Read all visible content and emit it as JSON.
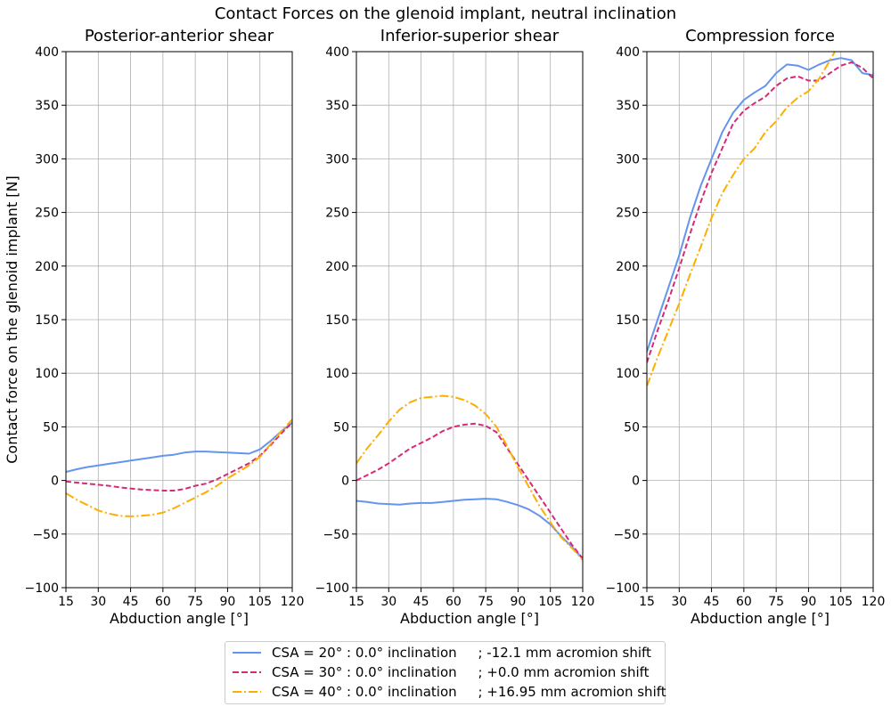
{
  "figure_title": "Contact Forces on the glenoid implant, neutral inclination",
  "colors": {
    "csa20": "#6495ed",
    "csa30": "#d62a76",
    "csa40": "#ffae00",
    "grid": "#b0b0b0"
  },
  "legend": [
    {
      "label": "CSA = 20° : 0.0° inclination     ; -12.1 mm acromion shift",
      "color": "#6495ed",
      "style": "solid"
    },
    {
      "label": "CSA = 30° : 0.0° inclination     ; +0.0 mm acromion shift",
      "color": "#d62a76",
      "style": "dashed"
    },
    {
      "label": "CSA = 40° : 0.0° inclination     ; +16.95 mm acromion shift",
      "color": "#ffae00",
      "style": "dashdot"
    }
  ],
  "chart_data": [
    {
      "type": "line",
      "title": "Posterior-anterior shear",
      "xlabel": "Abduction angle [°]",
      "ylabel": "Contact force on the glenoid implant [N]",
      "xlim": [
        15,
        120
      ],
      "ylim": [
        -100,
        400
      ],
      "xticks": [
        15,
        30,
        45,
        60,
        75,
        90,
        105,
        120
      ],
      "yticks": [
        -100,
        -50,
        0,
        50,
        100,
        150,
        200,
        250,
        300,
        350,
        400
      ],
      "grid": true,
      "series": [
        {
          "name": "CSA = 20° : 0.0° inclination     ; -12.1 mm acromion shift",
          "x": [
            15,
            20,
            25,
            30,
            35,
            40,
            45,
            50,
            55,
            60,
            65,
            70,
            75,
            80,
            85,
            90,
            95,
            100,
            105,
            110,
            115,
            120
          ],
          "y": [
            8,
            10.5,
            12.5,
            14,
            15.5,
            17,
            18.5,
            20,
            21.5,
            23,
            24,
            26,
            27,
            27,
            26.5,
            26,
            25.5,
            25,
            29,
            37,
            46,
            54
          ]
        },
        {
          "name": "CSA = 30° : 0.0° inclination     ; +0.0 mm acromion shift",
          "x": [
            15,
            20,
            25,
            30,
            35,
            40,
            45,
            50,
            55,
            60,
            65,
            70,
            75,
            80,
            85,
            90,
            95,
            100,
            105,
            110,
            115,
            120
          ],
          "y": [
            -1,
            -2,
            -3,
            -4,
            -5,
            -6.5,
            -7.5,
            -8.5,
            -9,
            -9.5,
            -9.5,
            -8,
            -5,
            -3,
            1,
            6,
            11,
            16,
            23,
            33,
            44,
            54
          ]
        },
        {
          "name": "CSA = 40° : 0.0° inclination     ; +16.95 mm acromion shift",
          "x": [
            15,
            20,
            25,
            30,
            35,
            40,
            45,
            50,
            55,
            60,
            65,
            70,
            75,
            80,
            85,
            90,
            95,
            100,
            105,
            110,
            115,
            120
          ],
          "y": [
            -12,
            -18,
            -23,
            -28,
            -31,
            -33,
            -33.5,
            -33,
            -32,
            -30,
            -26,
            -21,
            -16,
            -11,
            -5,
            2,
            8,
            14,
            22,
            34,
            46,
            57
          ]
        }
      ]
    },
    {
      "type": "line",
      "title": "Inferior-superior shear",
      "xlabel": "Abduction angle [°]",
      "ylabel": "",
      "xlim": [
        15,
        120
      ],
      "ylim": [
        -100,
        400
      ],
      "xticks": [
        15,
        30,
        45,
        60,
        75,
        90,
        105,
        120
      ],
      "yticks": [
        -100,
        -50,
        0,
        50,
        100,
        150,
        200,
        250,
        300,
        350,
        400
      ],
      "grid": true,
      "series": [
        {
          "name": "CSA = 20° : 0.0° inclination     ; -12.1 mm acromion shift",
          "x": [
            15,
            20,
            25,
            30,
            35,
            40,
            45,
            50,
            55,
            60,
            65,
            70,
            75,
            80,
            85,
            90,
            95,
            100,
            105,
            110,
            115,
            120
          ],
          "y": [
            -19,
            -20,
            -21.5,
            -22,
            -22.5,
            -21.5,
            -21,
            -21,
            -20,
            -19,
            -18,
            -17.5,
            -17,
            -17.5,
            -20,
            -23,
            -27,
            -33,
            -41,
            -52,
            -62,
            -73
          ]
        },
        {
          "name": "CSA = 30° : 0.0° inclination     ; +0.0 mm acromion shift",
          "x": [
            15,
            20,
            25,
            30,
            35,
            40,
            45,
            50,
            55,
            60,
            65,
            70,
            75,
            80,
            85,
            90,
            95,
            100,
            105,
            110,
            115,
            120
          ],
          "y": [
            0,
            5,
            10,
            16,
            23,
            30,
            35,
            40,
            46,
            50,
            52,
            53,
            51,
            45,
            30,
            15,
            0,
            -15,
            -30,
            -45,
            -60,
            -73
          ]
        },
        {
          "name": "CSA = 40° : 0.0° inclination     ; +16.95 mm acromion shift",
          "x": [
            15,
            20,
            25,
            30,
            35,
            40,
            45,
            50,
            55,
            60,
            65,
            70,
            75,
            80,
            85,
            90,
            95,
            100,
            105,
            110,
            115,
            120
          ],
          "y": [
            16,
            30,
            42,
            55,
            66,
            73,
            77,
            78,
            79,
            78,
            75,
            70,
            62,
            50,
            32,
            12,
            -6,
            -24,
            -39,
            -53,
            -63,
            -74
          ]
        }
      ]
    },
    {
      "type": "line",
      "title": "Compression force",
      "xlabel": "Abduction angle [°]",
      "ylabel": "",
      "xlim": [
        15,
        120
      ],
      "ylim": [
        -100,
        400
      ],
      "xticks": [
        15,
        30,
        45,
        60,
        75,
        90,
        105,
        120
      ],
      "yticks": [
        -100,
        -50,
        0,
        50,
        100,
        150,
        200,
        250,
        300,
        350,
        400
      ],
      "grid": true,
      "series": [
        {
          "name": "CSA = 20° : 0.0° inclination     ; -12.1 mm acromion shift",
          "x": [
            15,
            20,
            25,
            30,
            35,
            40,
            45,
            50,
            55,
            60,
            65,
            70,
            75,
            80,
            85,
            90,
            95,
            100,
            105,
            110,
            115,
            120
          ],
          "y": [
            120,
            150,
            180,
            210,
            245,
            275,
            300,
            325,
            343,
            355,
            362,
            368,
            380,
            388,
            387,
            383,
            388,
            392,
            394,
            392,
            380,
            378
          ]
        },
        {
          "name": "CSA = 30° : 0.0° inclination     ; +0.0 mm acromion shift",
          "x": [
            15,
            20,
            25,
            30,
            35,
            40,
            45,
            50,
            55,
            60,
            65,
            70,
            75,
            80,
            85,
            90,
            95,
            100,
            105,
            110,
            115,
            120
          ],
          "y": [
            110,
            140,
            168,
            198,
            230,
            260,
            287,
            310,
            333,
            345,
            352,
            358,
            368,
            375,
            377,
            373,
            373,
            380,
            387,
            390,
            385,
            375
          ]
        },
        {
          "name": "CSA = 40° : 0.0° inclination     ; +16.95 mm acromion shift",
          "x": [
            15,
            20,
            25,
            30,
            35,
            40,
            45,
            50,
            55,
            60,
            65,
            70,
            75,
            80,
            85,
            90,
            95,
            100,
            105,
            110,
            115,
            120
          ],
          "y": [
            88,
            115,
            140,
            165,
            192,
            218,
            245,
            268,
            285,
            300,
            310,
            325,
            335,
            348,
            357,
            363,
            375,
            392,
            410,
            420,
            420,
            420
          ]
        }
      ]
    }
  ]
}
